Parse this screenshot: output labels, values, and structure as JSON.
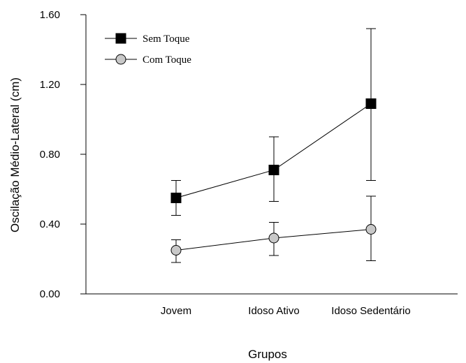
{
  "chart_data": {
    "type": "line",
    "xlabel": "Grupos",
    "ylabel": "Oscilação Médio-Lateral (cm)",
    "categories": [
      "Jovem",
      "Idoso Ativo",
      "Idoso Sedentário"
    ],
    "ylim": [
      0,
      1.6
    ],
    "yticks": [
      "0.00",
      "0.40",
      "0.80",
      "1.20",
      "1.60"
    ],
    "grid": false,
    "legend_position": "top-left",
    "series": [
      {
        "name": "Sem Toque",
        "marker": "square",
        "marker_fill": "#000000",
        "values": [
          0.55,
          0.71,
          1.09
        ],
        "error_low": [
          0.45,
          0.53,
          0.65
        ],
        "error_high": [
          0.65,
          0.9,
          1.52
        ]
      },
      {
        "name": "Com Toque",
        "marker": "circle",
        "marker_fill": "#c8c8c8",
        "values": [
          0.25,
          0.32,
          0.37
        ],
        "error_low": [
          0.18,
          0.22,
          0.19
        ],
        "error_high": [
          0.31,
          0.41,
          0.56
        ]
      }
    ]
  }
}
